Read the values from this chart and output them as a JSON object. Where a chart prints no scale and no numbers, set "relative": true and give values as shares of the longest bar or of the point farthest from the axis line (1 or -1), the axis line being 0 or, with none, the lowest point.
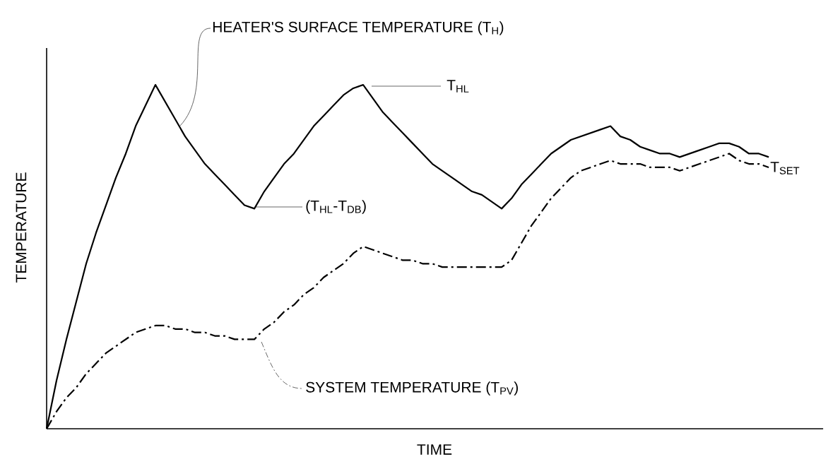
{
  "chart_data": {
    "type": "line",
    "relative": true,
    "xlabel": "TIME",
    "ylabel": "TEMPERATURE",
    "categories": [
      null,
      null,
      null,
      null,
      null,
      null,
      null,
      null,
      null,
      null,
      null,
      null,
      null,
      null,
      null,
      null,
      null,
      null,
      null,
      null,
      null,
      null,
      null,
      null,
      null,
      null,
      null,
      null,
      null,
      null,
      null,
      null,
      null,
      null,
      null,
      null,
      null,
      null,
      null,
      null,
      null,
      null,
      null,
      null,
      null,
      null,
      null,
      null,
      null,
      null,
      null,
      null,
      null,
      null,
      null,
      null,
      null,
      null,
      null,
      null,
      null,
      null,
      null,
      null,
      null,
      null,
      null,
      null,
      null,
      null,
      null,
      null,
      null,
      null
    ],
    "series": [
      {
        "color": "#000000",
        "line_style": "solid",
        "values": [
          0,
          0.14,
          0.26,
          0.37,
          0.48,
          0.57,
          0.65,
          0.73,
          0.8,
          0.88,
          0.94,
          1,
          0.95,
          0.9,
          0.85,
          0.81,
          0.77,
          0.74,
          0.71,
          0.68,
          0.65,
          0.64,
          0.69,
          0.73,
          0.77,
          0.8,
          0.84,
          0.88,
          0.91,
          0.94,
          0.97,
          0.99,
          1,
          0.96,
          0.92,
          0.89,
          0.86,
          0.83,
          0.8,
          0.77,
          0.75,
          0.73,
          0.71,
          0.69,
          0.68,
          0.66,
          0.64,
          0.67,
          0.71,
          0.74,
          0.77,
          0.8,
          0.82,
          0.84,
          0.85,
          0.86,
          0.87,
          0.88,
          0.85,
          0.84,
          0.82,
          0.81,
          0.8,
          0.8,
          0.79,
          0.8,
          0.81,
          0.82,
          0.83,
          0.83,
          0.82,
          0.8,
          0.8,
          0.79
        ]
      },
      {
        "color": "#000000",
        "line_style": "dashdot",
        "values": [
          0,
          0.05,
          0.09,
          0.12,
          0.16,
          0.19,
          0.22,
          0.24,
          0.26,
          0.28,
          0.29,
          0.3,
          0.3,
          0.29,
          0.29,
          0.28,
          0.28,
          0.27,
          0.27,
          0.26,
          0.26,
          0.26,
          0.29,
          0.31,
          0.34,
          0.36,
          0.39,
          0.41,
          0.44,
          0.46,
          0.48,
          0.51,
          0.53,
          0.52,
          0.51,
          0.5,
          0.49,
          0.49,
          0.48,
          0.48,
          0.47,
          0.47,
          0.47,
          0.47,
          0.47,
          0.47,
          0.47,
          0.49,
          0.54,
          0.59,
          0.63,
          0.67,
          0.7,
          0.73,
          0.75,
          0.76,
          0.77,
          0.78,
          0.77,
          0.77,
          0.77,
          0.76,
          0.76,
          0.76,
          0.75,
          0.76,
          0.77,
          0.78,
          0.79,
          0.8,
          0.78,
          0.77,
          0.77,
          0.76
        ]
      }
    ],
    "annotations": [
      "HEATER'S SURFACE TEMPERATURE (T$_{H}$)",
      "T$_{HL}$",
      "(T$_{HL}$-T$_{DB}$)",
      "T$_{SET}$",
      "SYSTEM TEMPERATURE (T$_{PV}$)"
    ]
  }
}
